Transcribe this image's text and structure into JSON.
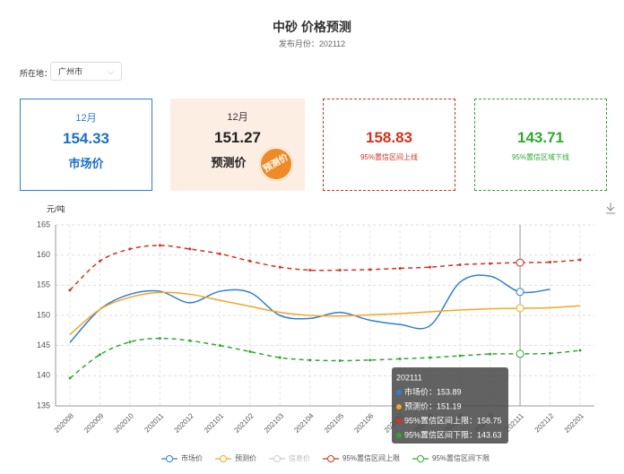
{
  "header": {
    "title": "中砂 价格预测",
    "subtitle": "发布月份：202112"
  },
  "location": {
    "label": "所在地：",
    "value": "广州市"
  },
  "cards": [
    {
      "month": "12月",
      "value": 154.33,
      "label": "市场价"
    },
    {
      "month": "12月",
      "value": 151.27,
      "label": "预测价",
      "stamp": "预测价"
    },
    {
      "value": 158.83,
      "label": "95%置信区间上线"
    },
    {
      "value": 143.71,
      "label": "95%置信区域下线"
    }
  ],
  "chart_data": {
    "type": "line",
    "y_label": "元/吨",
    "categories": [
      "202008",
      "202009",
      "202010",
      "202011",
      "202012",
      "202101",
      "202102",
      "202103",
      "202104",
      "202105",
      "202106",
      "202107",
      "202108",
      "202109",
      "202110",
      "202111",
      "202112",
      "202201"
    ],
    "series": [
      {
        "name": "市场价",
        "color": "#2d7fd6",
        "dash": false,
        "values": [
          145.5,
          151,
          153.5,
          154,
          152.1,
          154,
          153.8,
          150,
          149.5,
          150.5,
          149.2,
          148.5,
          148.3,
          155.5,
          156.5,
          153.89,
          154.33,
          null
        ]
      },
      {
        "name": "预测价",
        "color": "#f5a623",
        "dash": false,
        "values": [
          146.8,
          151,
          153,
          153.8,
          153.5,
          152.5,
          151.5,
          150.5,
          150,
          149.9,
          150.1,
          150.3,
          150.6,
          150.9,
          151.1,
          151.19,
          151.27,
          151.6
        ]
      },
      {
        "name": "信息价",
        "color": "#cccccc",
        "dash": false,
        "values": [
          null,
          null,
          null,
          null,
          null,
          null,
          null,
          null,
          null,
          null,
          null,
          null,
          null,
          null,
          null,
          null,
          null,
          null
        ]
      },
      {
        "name": "95%置信区间上限",
        "color": "#d6321e",
        "dash": true,
        "values": [
          154.2,
          159,
          161,
          161.6,
          161,
          160.2,
          159,
          158,
          157.5,
          157.5,
          157.6,
          157.8,
          158,
          158.4,
          158.6,
          158.75,
          158.83,
          159.2
        ]
      },
      {
        "name": "95%置信区间下限",
        "color": "#2eaa2e",
        "dash": true,
        "values": [
          139.6,
          143.5,
          145.6,
          146.2,
          145.8,
          145,
          144,
          143,
          142.6,
          142.5,
          142.6,
          142.8,
          143,
          143.3,
          143.6,
          143.63,
          143.71,
          144.2
        ]
      }
    ],
    "ylim": [
      135,
      165
    ],
    "yticks": [
      135,
      140,
      145,
      150,
      155,
      160,
      165
    ],
    "grid": true,
    "hover_index": 15,
    "tooltip": {
      "title": "202111",
      "rows": [
        "市场价：153.89",
        "预测价：151.19",
        "95%置信区间上限：158.75",
        "95%置信区间下限：143.63"
      ]
    }
  }
}
